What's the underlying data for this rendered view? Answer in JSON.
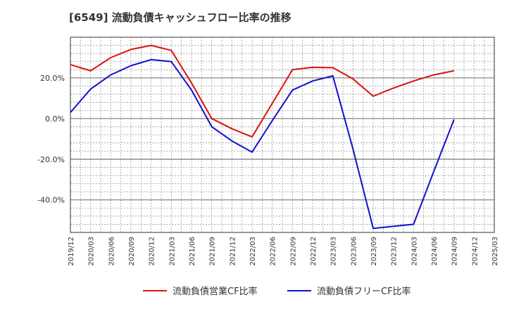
{
  "chart_data": {
    "type": "line",
    "title": "[6549]  流動負債キャッシュフロー比率の推移",
    "xlabel": "",
    "ylabel": "",
    "ylim": [
      -56,
      40
    ],
    "grid": true,
    "legend_position": "bottom-center",
    "yticks": [
      20,
      0,
      -20,
      -40
    ],
    "ytick_labels": [
      "20.0%",
      "0.0%",
      "-20.0%",
      "-40.0%"
    ],
    "categories": [
      "2019/12",
      "2020/03",
      "2020/06",
      "2020/09",
      "2020/12",
      "2021/03",
      "2021/06",
      "2021/09",
      "2021/12",
      "2022/03",
      "2022/06",
      "2022/09",
      "2022/12",
      "2023/03",
      "2023/06",
      "2023/09",
      "2023/12",
      "2024/03",
      "2024/06",
      "2024/09",
      "2024/12",
      "2025/03"
    ],
    "series": [
      {
        "name": "流動負債営業CF比率",
        "color": "#dd1111",
        "values": [
          26.5,
          23.5,
          30,
          34,
          36,
          33.5,
          17.5,
          0,
          -5,
          -9,
          7.5,
          24,
          25.2,
          25,
          19.5,
          11,
          15,
          18.5,
          21.5,
          23.5,
          null,
          null
        ]
      },
      {
        "name": "流動負債フリーCF比率",
        "color": "#1111cc",
        "values": [
          3,
          14.5,
          21.5,
          26,
          29,
          28,
          14,
          -4,
          -11,
          -16.5,
          -1,
          14,
          18.5,
          21,
          -15,
          -54,
          -53,
          -52,
          -26,
          -0.5,
          null,
          null
        ]
      }
    ]
  }
}
